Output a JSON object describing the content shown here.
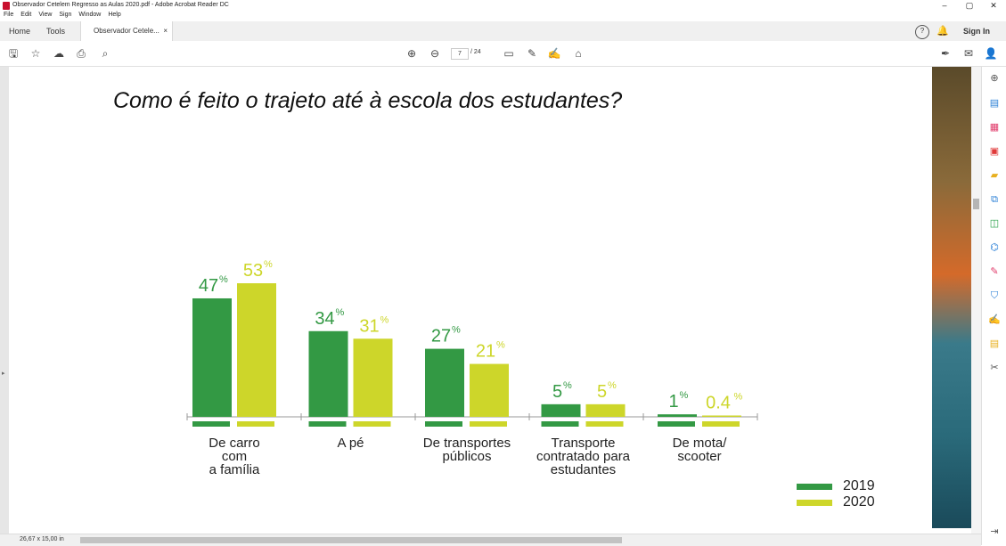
{
  "window": {
    "title": "Observador Cetelem Regresso as Aulas 2020.pdf - Adobe Acrobat Reader DC",
    "controls": [
      "–",
      "▢",
      "✕"
    ]
  },
  "menu": [
    "File",
    "Edit",
    "View",
    "Sign",
    "Window",
    "Help"
  ],
  "tabs": {
    "home": "Home",
    "tools": "Tools",
    "document": "Observador Cetele...",
    "close": "×"
  },
  "topbar": {
    "help": "?",
    "sign_in": "Sign In"
  },
  "toolbar": {
    "current_page": "7",
    "total_pages": "/ 24"
  },
  "status": {
    "page_size": "26,67 x 15,00 in"
  },
  "colors": {
    "series_2019": "#339944",
    "series_2020": "#cdd62a"
  },
  "slide": {
    "title": "Como é feito o trajeto até à escola dos estudantes?"
  },
  "chart_data": {
    "type": "bar",
    "categories": [
      [
        "De carro",
        "com",
        "a família"
      ],
      [
        "A pé"
      ],
      [
        "De transportes",
        "públicos"
      ],
      [
        "Transporte",
        "contratado para",
        "estudantes"
      ],
      [
        "De mota/",
        "scooter"
      ]
    ],
    "series": [
      {
        "name": "2019",
        "values": [
          47,
          34,
          27,
          5,
          1
        ],
        "labels": [
          "47",
          "34",
          "27",
          "5",
          "1"
        ]
      },
      {
        "name": "2020",
        "values": [
          53,
          31,
          21,
          5,
          0.4
        ],
        "labels": [
          "53",
          "31",
          "21",
          "5",
          "0.4"
        ]
      }
    ],
    "unit": "%",
    "ylim": [
      0,
      53
    ],
    "legend": "bottom-right"
  }
}
